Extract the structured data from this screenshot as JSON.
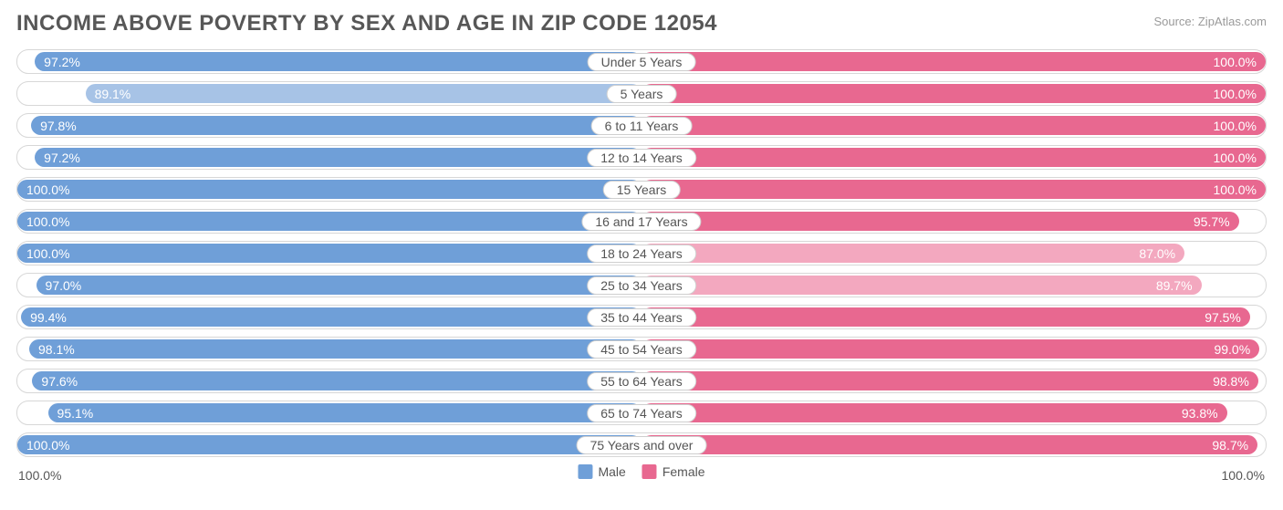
{
  "title": "INCOME ABOVE POVERTY BY SEX AND AGE IN ZIP CODE 12054",
  "source": "Source: ZipAtlas.com",
  "colors": {
    "male": "#6f9fd8",
    "male_light": "#a7c3e6",
    "female": "#e86890",
    "female_light": "#f3a8bf",
    "border": "#d7d7d7",
    "text": "#555555"
  },
  "axis": {
    "left": "100.0%",
    "right": "100.0%"
  },
  "legend": [
    {
      "label": "Male",
      "colorKey": "male"
    },
    {
      "label": "Female",
      "colorKey": "female"
    }
  ],
  "chart": {
    "type": "diverging-bar",
    "max": 100,
    "rows": [
      {
        "category": "Under 5 Years",
        "male": 97.2,
        "female": 100.0,
        "male_label": "97.2%",
        "female_label": "100.0%"
      },
      {
        "category": "5 Years",
        "male": 89.1,
        "female": 100.0,
        "male_label": "89.1%",
        "female_label": "100.0%",
        "male_light": true
      },
      {
        "category": "6 to 11 Years",
        "male": 97.8,
        "female": 100.0,
        "male_label": "97.8%",
        "female_label": "100.0%"
      },
      {
        "category": "12 to 14 Years",
        "male": 97.2,
        "female": 100.0,
        "male_label": "97.2%",
        "female_label": "100.0%"
      },
      {
        "category": "15 Years",
        "male": 100.0,
        "female": 100.0,
        "male_label": "100.0%",
        "female_label": "100.0%"
      },
      {
        "category": "16 and 17 Years",
        "male": 100.0,
        "female": 95.7,
        "male_label": "100.0%",
        "female_label": "95.7%"
      },
      {
        "category": "18 to 24 Years",
        "male": 100.0,
        "female": 87.0,
        "male_label": "100.0%",
        "female_label": "87.0%",
        "female_light": true
      },
      {
        "category": "25 to 34 Years",
        "male": 97.0,
        "female": 89.7,
        "male_label": "97.0%",
        "female_label": "89.7%",
        "female_light": true
      },
      {
        "category": "35 to 44 Years",
        "male": 99.4,
        "female": 97.5,
        "male_label": "99.4%",
        "female_label": "97.5%"
      },
      {
        "category": "45 to 54 Years",
        "male": 98.1,
        "female": 99.0,
        "male_label": "98.1%",
        "female_label": "99.0%"
      },
      {
        "category": "55 to 64 Years",
        "male": 97.6,
        "female": 98.8,
        "male_label": "97.6%",
        "female_label": "98.8%"
      },
      {
        "category": "65 to 74 Years",
        "male": 95.1,
        "female": 93.8,
        "male_label": "95.1%",
        "female_label": "93.8%"
      },
      {
        "category": "75 Years and over",
        "male": 100.0,
        "female": 98.7,
        "male_label": "100.0%",
        "female_label": "98.7%"
      }
    ]
  }
}
